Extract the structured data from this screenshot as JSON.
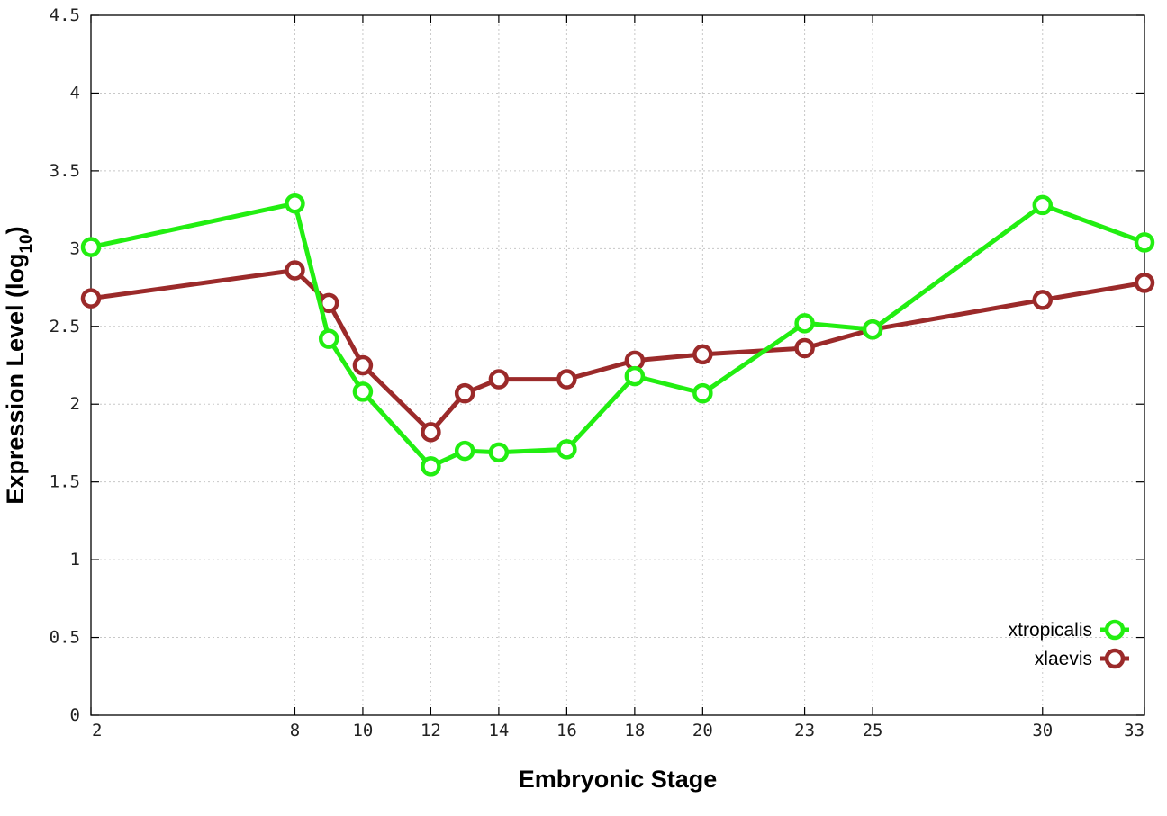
{
  "chart_data": {
    "type": "line",
    "title": "",
    "xlabel": "Embryonic Stage",
    "ylabel": "Expression Level (log",
    "ylabel_subscript": "10",
    "ylabel_suffix": ")",
    "x_ticks": [
      2,
      8,
      10,
      12,
      14,
      16,
      18,
      20,
      23,
      25,
      30,
      33
    ],
    "y_ticks": [
      "0",
      "0.5",
      "1",
      "1.5",
      "2",
      "2.5",
      "3",
      "3.5",
      "4",
      "4.5"
    ],
    "xlim": [
      2,
      33
    ],
    "ylim": [
      0,
      4.5
    ],
    "grid": true,
    "legend_position": "bottom-right",
    "series": [
      {
        "name": "xtropicalis",
        "color": "#22ee11",
        "points": [
          [
            2,
            3.01
          ],
          [
            8,
            3.29
          ],
          [
            9,
            2.42
          ],
          [
            10,
            2.08
          ],
          [
            12,
            1.6
          ],
          [
            13,
            1.7
          ],
          [
            14,
            1.69
          ],
          [
            16,
            1.71
          ],
          [
            18,
            2.18
          ],
          [
            20,
            2.07
          ],
          [
            23,
            2.52
          ],
          [
            25,
            2.48
          ],
          [
            30,
            3.28
          ],
          [
            33,
            3.04
          ]
        ]
      },
      {
        "name": "xlaevis",
        "color": "#9b2a2a",
        "points": [
          [
            2,
            2.68
          ],
          [
            8,
            2.86
          ],
          [
            9,
            2.65
          ],
          [
            10,
            2.25
          ],
          [
            12,
            1.82
          ],
          [
            13,
            2.07
          ],
          [
            14,
            2.16
          ],
          [
            16,
            2.16
          ],
          [
            18,
            2.28
          ],
          [
            20,
            2.32
          ],
          [
            23,
            2.36
          ],
          [
            25,
            2.48
          ],
          [
            30,
            2.67
          ],
          [
            33,
            2.78
          ]
        ]
      }
    ]
  }
}
